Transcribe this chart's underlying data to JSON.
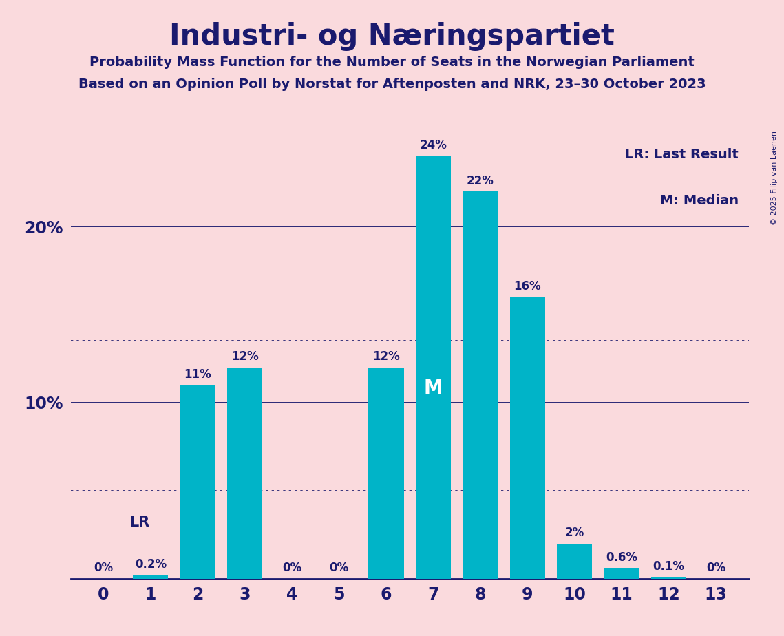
{
  "title": "Industri- og Næringspartiet",
  "subtitle1": "Probability Mass Function for the Number of Seats in the Norwegian Parliament",
  "subtitle2": "Based on an Opinion Poll by Norstat for Aftenposten and NRK, 23–30 October 2023",
  "copyright": "© 2025 Filip van Laenen",
  "categories": [
    0,
    1,
    2,
    3,
    4,
    5,
    6,
    7,
    8,
    9,
    10,
    11,
    12,
    13
  ],
  "values": [
    0.0,
    0.2,
    11.0,
    12.0,
    0.0,
    0.0,
    12.0,
    24.0,
    22.0,
    16.0,
    2.0,
    0.6,
    0.1,
    0.0
  ],
  "labels": [
    "0%",
    "0.2%",
    "11%",
    "12%",
    "0%",
    "0%",
    "12%",
    "24%",
    "22%",
    "16%",
    "2%",
    "0.6%",
    "0.1%",
    "0%"
  ],
  "bar_color": "#00B4C8",
  "background_color": "#FADADD",
  "title_color": "#1a1a6e",
  "label_color": "#1a1a6e",
  "axis_color": "#1a1a6e",
  "median_bar": 7,
  "median_label": "M",
  "lr_label": "LR",
  "ylim": [
    0,
    26
  ],
  "solid_gridlines": [
    10,
    20
  ],
  "dotted_gridlines": [
    5.0,
    13.5
  ],
  "legend_lr": "LR: Last Result",
  "legend_m": "M: Median",
  "bar_width": 0.75
}
